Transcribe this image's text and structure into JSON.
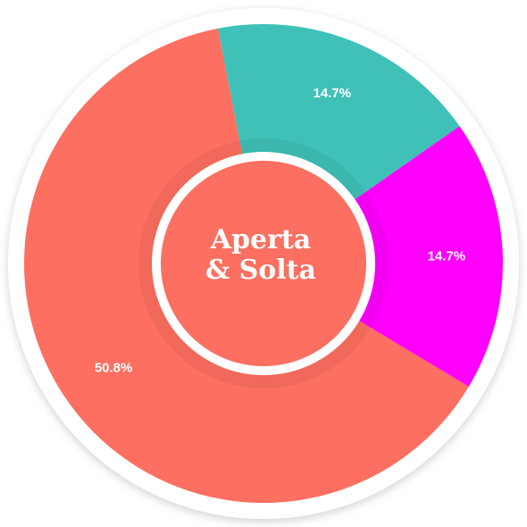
{
  "chart_data": {
    "type": "donut",
    "center_text": [
      "Aperta",
      "& Solta"
    ],
    "categories": [
      null,
      null,
      null
    ],
    "values": [
      14.7,
      14.7,
      50.8
    ],
    "value_labels": [
      "14.7%",
      "14.7%",
      "50.8%"
    ],
    "colors": [
      "#3fc1b8",
      "#ff00ff",
      "#fd6f60"
    ]
  }
}
